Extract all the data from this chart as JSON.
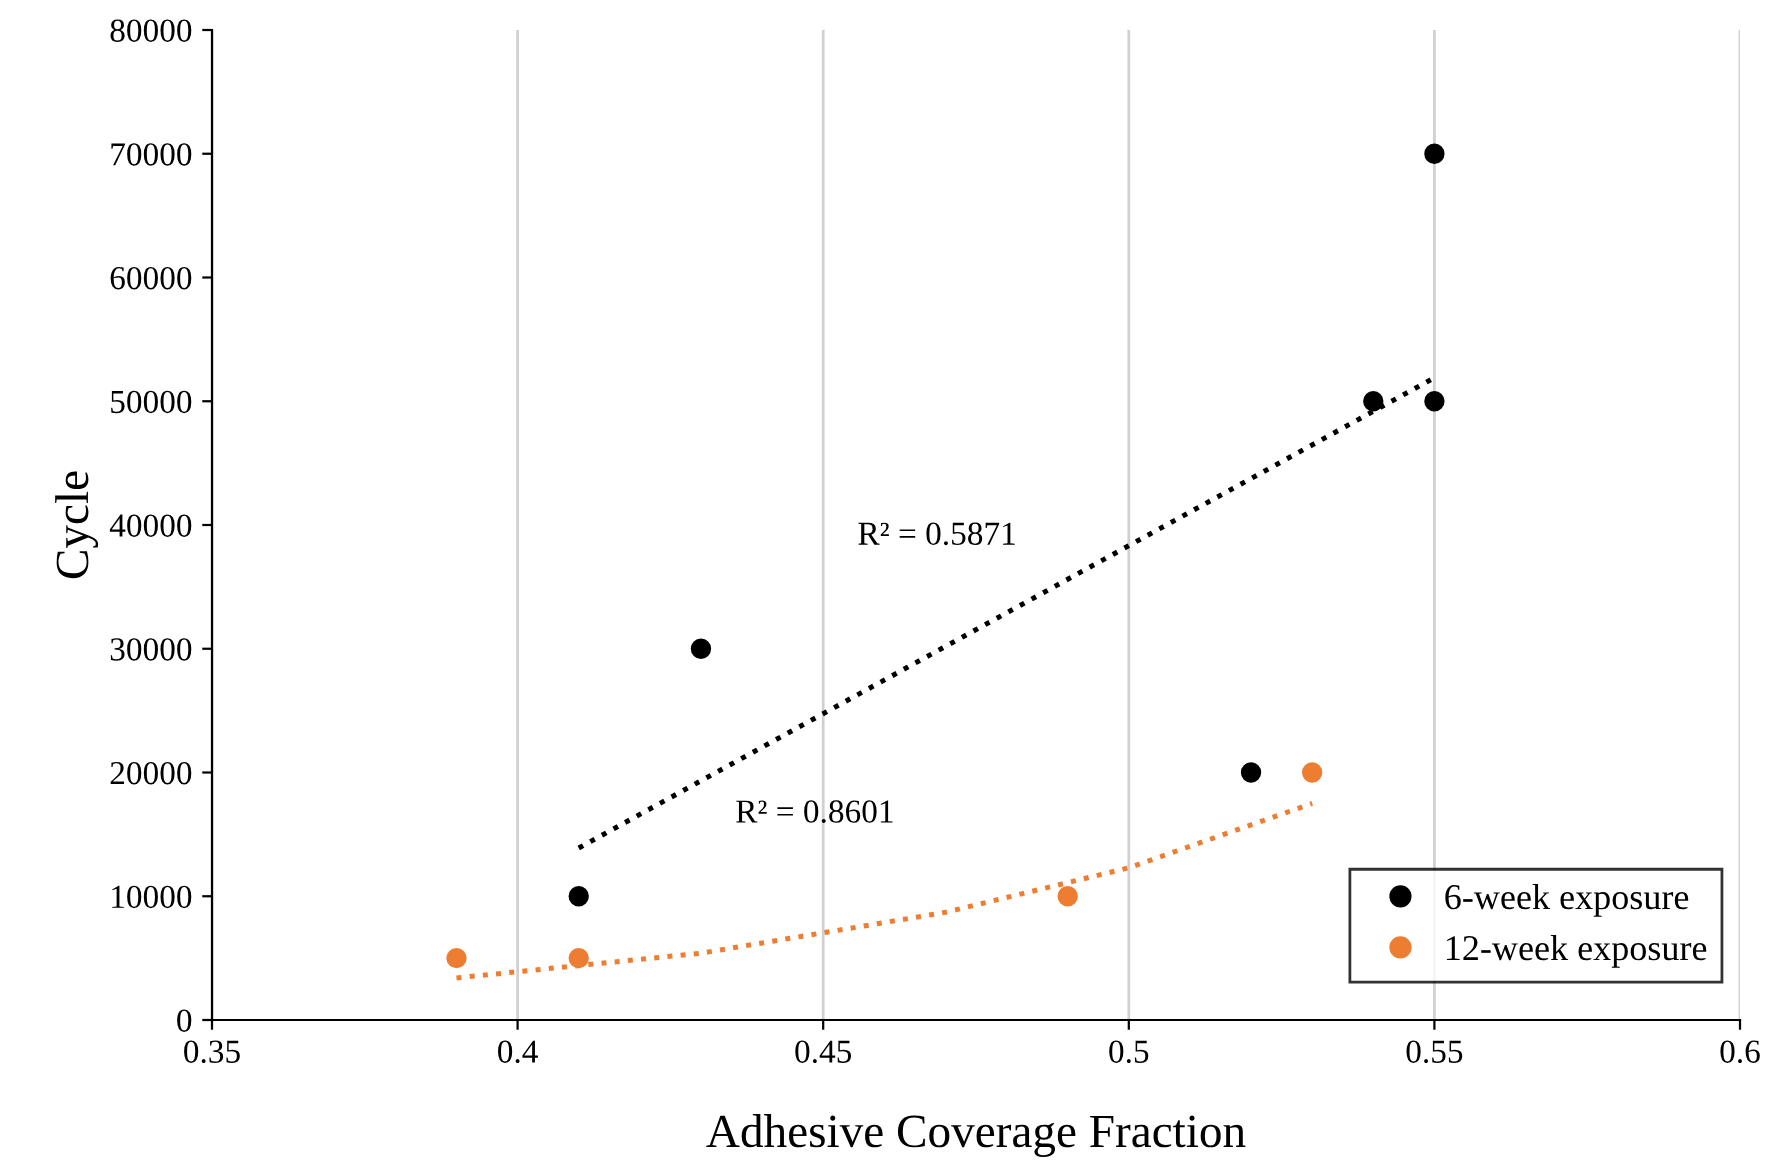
{
  "chart_data": {
    "type": "scatter",
    "xlabel": "Adhesive Coverage Fraction",
    "ylabel": "Cycle",
    "xlim": [
      0.35,
      0.6
    ],
    "xticks": [
      {
        "value": 0.35,
        "label": "0.35"
      },
      {
        "value": 0.4,
        "label": "0.4"
      },
      {
        "value": 0.45,
        "label": "0.45"
      },
      {
        "value": 0.5,
        "label": "0.5"
      },
      {
        "value": 0.55,
        "label": "0.55"
      },
      {
        "value": 0.6,
        "label": "0.6"
      }
    ],
    "ylim": [
      0,
      80000
    ],
    "yticks": [
      0,
      10000,
      20000,
      30000,
      40000,
      50000,
      60000,
      70000,
      80000
    ],
    "grid": "x",
    "legend": "bottom right",
    "marker": "circle",
    "series": [
      {
        "name": "6-week exposure",
        "color": "#000000",
        "x": [
          0.41,
          0.43,
          0.52,
          0.54,
          0.55,
          0.55
        ],
        "values": [
          10000,
          30000,
          20000,
          50000,
          50000,
          70000
        ]
      },
      {
        "name": "12-week exposure",
        "color": "#ed7d31",
        "x": [
          0.39,
          0.41,
          0.49,
          0.53
        ],
        "values": [
          5000,
          5000,
          10000,
          20000
        ]
      },
      {
        "type": "line",
        "marker": "none",
        "line_style": "dotted",
        "color": "#000000",
        "x": [
          0.41,
          0.55
        ],
        "values": [
          13900,
          51900
        ]
      },
      {
        "type": "line",
        "marker": "none",
        "line_style": "dotted",
        "color": "#ed7d31",
        "x": [
          0.39,
          0.43,
          0.47,
          0.5,
          0.53
        ],
        "values": [
          3400,
          5400,
          8700,
          12300,
          17500
        ]
      }
    ],
    "annotations": [
      "R² = 0.5871",
      "R² = 0.8601"
    ]
  }
}
